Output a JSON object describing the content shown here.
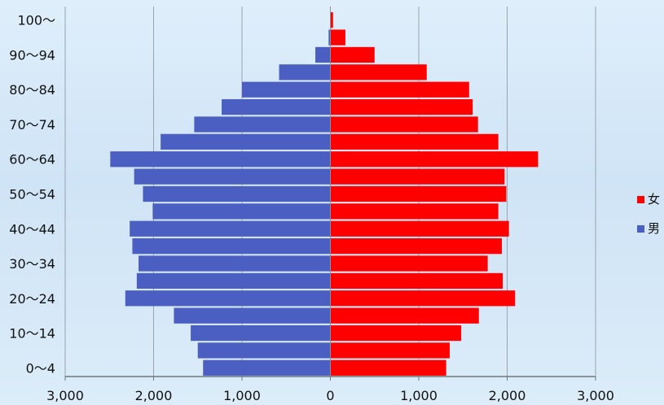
{
  "chart_data": {
    "type": "bar",
    "orientation": "horizontal",
    "layout": "population-pyramid",
    "title": "",
    "xlabel": "",
    "ylabel": "",
    "xlim": [
      -3000,
      3000
    ],
    "x_ticks": [
      -3000,
      -2000,
      -1000,
      0,
      1000,
      2000,
      3000
    ],
    "x_tick_labels": [
      "3,000",
      "2,000",
      "1,000",
      "0",
      "1,000",
      "2,000",
      "3,000"
    ],
    "grid": "vertical",
    "legend_position": "right",
    "categories": [
      "0～4",
      "5～9",
      "10～14",
      "15～19",
      "20～24",
      "25～29",
      "30～34",
      "35～39",
      "40～44",
      "45～49",
      "50～54",
      "55～59",
      "60～64",
      "65～69",
      "70～74",
      "75～79",
      "80～84",
      "85～89",
      "90～94",
      "95～99",
      "100～"
    ],
    "visible_tick_labels": [
      "0～4",
      "10～14",
      "20～24",
      "30～34",
      "40～44",
      "50～54",
      "60～64",
      "70～74",
      "80～84",
      "90～94",
      "100～"
    ],
    "series": [
      {
        "name": "女",
        "color": "#ff0000",
        "side": "right",
        "values": [
          1310,
          1350,
          1480,
          1680,
          2090,
          1950,
          1780,
          1940,
          2020,
          1900,
          1990,
          1970,
          2350,
          1900,
          1670,
          1610,
          1570,
          1090,
          500,
          170,
          30
        ]
      },
      {
        "name": "男",
        "color": "#4a5fc1",
        "side": "left",
        "values": [
          1440,
          1500,
          1580,
          1770,
          2320,
          2190,
          2170,
          2240,
          2270,
          2010,
          2120,
          2220,
          2490,
          1920,
          1540,
          1230,
          1000,
          580,
          170,
          20,
          0
        ]
      }
    ]
  }
}
